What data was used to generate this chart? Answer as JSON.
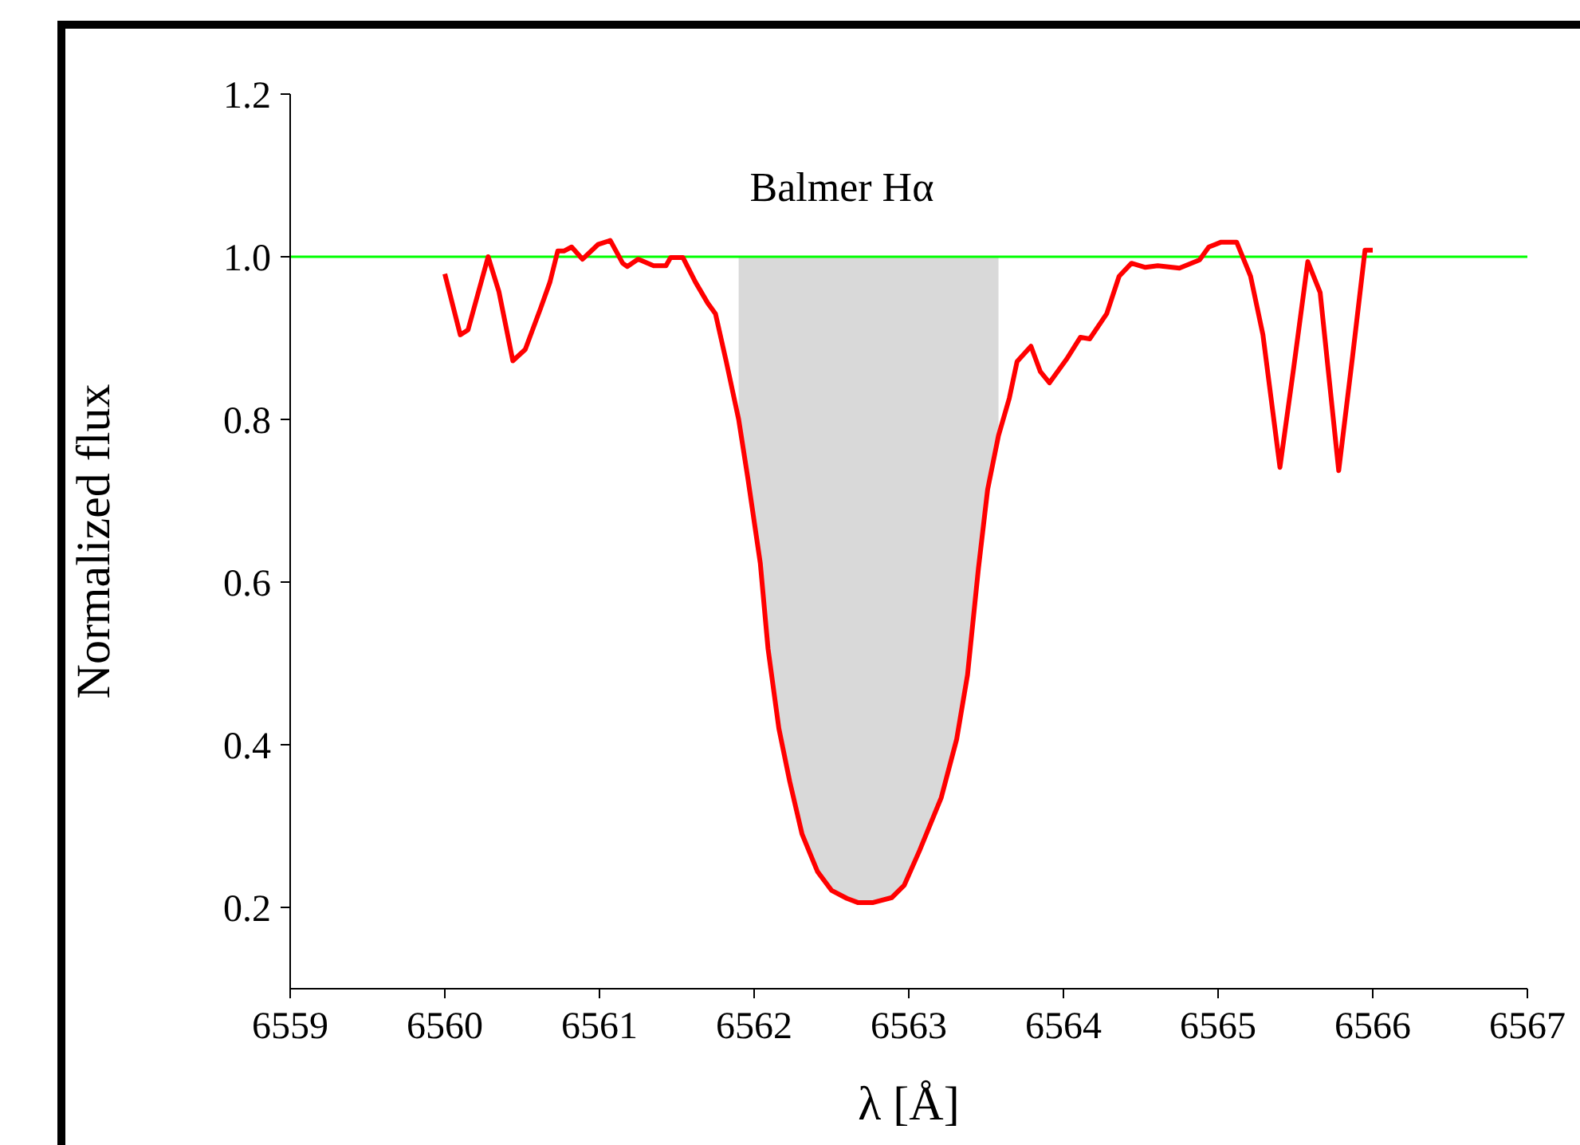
{
  "chart_data": {
    "type": "line",
    "xlabel": "λ [Å]",
    "ylabel": "Normalized flux",
    "annotations": [
      "Balmer Hα"
    ],
    "x": [
      6560.0,
      6560.1,
      6560.15,
      6560.28,
      6560.35,
      6560.44,
      6560.52,
      6560.62,
      6560.68,
      6560.73,
      6560.77,
      6560.82,
      6560.89,
      6560.99,
      6561.07,
      6561.15,
      6561.18,
      6561.25,
      6561.35,
      6561.43,
      6561.46,
      6561.54,
      6561.62,
      6561.7,
      6561.75,
      6561.82,
      6561.9,
      6561.96,
      6562.04,
      6562.09,
      6562.16,
      6562.23,
      6562.31,
      6562.41,
      6562.5,
      6562.6,
      6562.67,
      6562.77,
      6562.89,
      6562.97,
      6563.07,
      6563.21,
      6563.31,
      6563.38,
      6563.45,
      6563.51,
      6563.58,
      6563.65,
      6563.7,
      6563.79,
      6563.85,
      6563.91,
      6564.02,
      6564.11,
      6564.17,
      6564.28,
      6564.36,
      6564.44,
      6564.53,
      6564.61,
      6564.75,
      6564.88,
      6564.94,
      6565.02,
      6565.12,
      6565.21,
      6565.29,
      6565.4,
      6565.49,
      6565.58,
      6565.66,
      6565.78,
      6565.87,
      6565.95,
      6566.0
    ],
    "series": [
      {
        "color": "#ff0000",
        "values": [
          0.979,
          0.904,
          0.91,
          1.0,
          0.957,
          0.872,
          0.886,
          0.937,
          0.969,
          1.007,
          1.007,
          1.012,
          0.997,
          1.015,
          1.02,
          0.992,
          0.988,
          0.997,
          0.989,
          0.989,
          0.999,
          0.999,
          0.969,
          0.943,
          0.93,
          0.871,
          0.8,
          0.727,
          0.623,
          0.518,
          0.42,
          0.355,
          0.29,
          0.244,
          0.221,
          0.211,
          0.206,
          0.206,
          0.212,
          0.227,
          0.27,
          0.335,
          0.407,
          0.486,
          0.616,
          0.714,
          0.78,
          0.826,
          0.871,
          0.89,
          0.859,
          0.845,
          0.874,
          0.901,
          0.899,
          0.93,
          0.976,
          0.992,
          0.987,
          0.989,
          0.986,
          0.996,
          1.012,
          1.018,
          1.018,
          0.976,
          0.904,
          0.741,
          0.865,
          0.994,
          0.956,
          0.737,
          0.878,
          1.008,
          1.008
        ],
        "lower": [
          null,
          null,
          null,
          null,
          null,
          null,
          null,
          null,
          null,
          null,
          null,
          null,
          null,
          null,
          null,
          null,
          null,
          null,
          null,
          null,
          null,
          null,
          null,
          null,
          null,
          null,
          0.8,
          0.727,
          0.623,
          0.518,
          0.42,
          0.355,
          0.29,
          0.244,
          0.221,
          0.211,
          0.206,
          0.206,
          0.212,
          0.227,
          0.27,
          0.335,
          0.407,
          0.486,
          0.616,
          0.714,
          0.78,
          null,
          null,
          null,
          null,
          null,
          null,
          null,
          null,
          null,
          null,
          null,
          null,
          null,
          null,
          null,
          null,
          null,
          null,
          null,
          null,
          null,
          null,
          null,
          null,
          null,
          null,
          null,
          null
        ],
        "upper": [
          null,
          null,
          null,
          null,
          null,
          null,
          null,
          null,
          null,
          null,
          null,
          null,
          null,
          null,
          null,
          null,
          null,
          null,
          null,
          null,
          null,
          null,
          null,
          null,
          null,
          null,
          1,
          1,
          1,
          1,
          1,
          1,
          1,
          1,
          1,
          1,
          1,
          1,
          1,
          1,
          1,
          1,
          1,
          1,
          1,
          1,
          1,
          null,
          null,
          null,
          null,
          null,
          null,
          null,
          null,
          null,
          null,
          null,
          null,
          null,
          null,
          null,
          null,
          null,
          null,
          null,
          null,
          null,
          null,
          null,
          null,
          null,
          null,
          null,
          null
        ]
      }
    ],
    "xlim": [
      6559,
      6567
    ],
    "xticks": [
      6559,
      6560,
      6561,
      6562,
      6563,
      6564,
      6565,
      6566,
      6567
    ],
    "ylim": [
      0.1,
      1.2
    ],
    "yticks": [
      0.2,
      0.4,
      0.6,
      0.8,
      {
        "value": 1,
        "label": "1.0"
      },
      1.2
    ],
    "ref_lines": [
      {
        "axis": "y",
        "value": 1,
        "color": "#00ff00"
      }
    ],
    "grid": false,
    "legend": false,
    "marker": "none",
    "line_style": "solid"
  }
}
